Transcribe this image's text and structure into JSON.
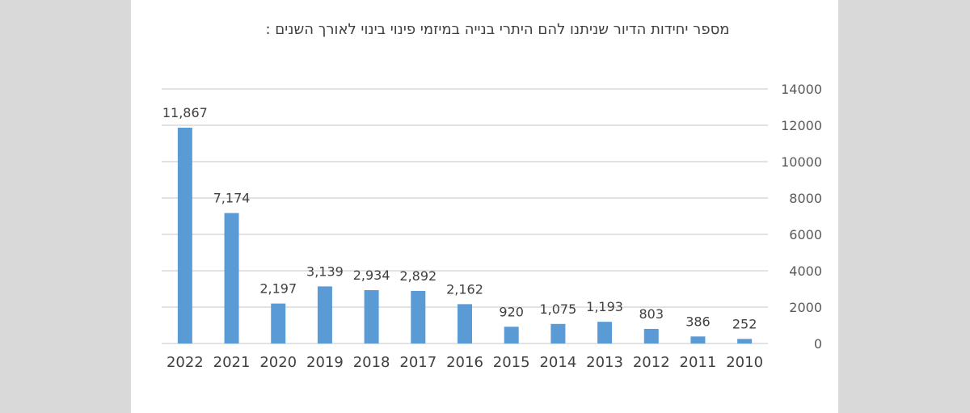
{
  "chart_data": {
    "type": "bar",
    "title": "מספר יחידות הדיור שניתנו להם היתרי בנייה במיזמי פינוי בינוי לאורך השנים :",
    "xlabel": "",
    "ylabel": "",
    "categories": [
      "2022",
      "2021",
      "2020",
      "2019",
      "2018",
      "2017",
      "2016",
      "2015",
      "2014",
      "2013",
      "2012",
      "2011",
      "2010"
    ],
    "values": [
      11867,
      7174,
      2197,
      3139,
      2934,
      2892,
      2162,
      920,
      1075,
      1193,
      803,
      386,
      252
    ],
    "data_labels": [
      "11,867",
      "7,174",
      "2,197",
      "3,139",
      "2,934",
      "2,892",
      "2,162",
      "920",
      "1,075",
      "1,193",
      "803",
      "386",
      "252"
    ],
    "ylim": [
      0,
      14000
    ],
    "yticks": [
      0,
      2000,
      4000,
      6000,
      8000,
      10000,
      12000,
      14000
    ],
    "y_axis_side": "right",
    "grid": true,
    "bar_color": "#5b9bd5",
    "grid_color": "#d9d9d9"
  }
}
